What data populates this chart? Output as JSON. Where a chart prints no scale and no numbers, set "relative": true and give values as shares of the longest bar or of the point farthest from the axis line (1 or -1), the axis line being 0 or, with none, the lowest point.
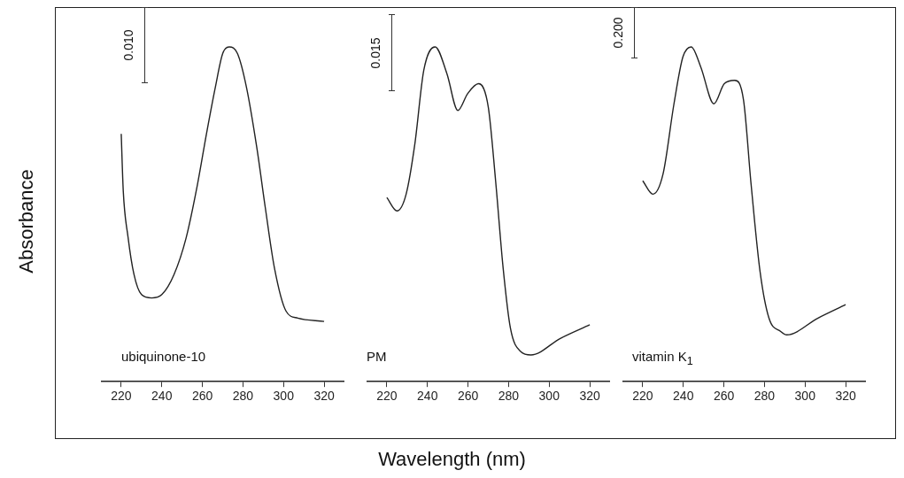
{
  "chart_data": [
    {
      "type": "line",
      "title": "ubiquinone-10",
      "ylabel": "Absorbance",
      "relative": true,
      "annotations": [
        "0.010"
      ],
      "xlim": [
        210,
        330
      ],
      "xticks": [
        220,
        240,
        260,
        280,
        300,
        320
      ],
      "grid": false,
      "legend": false,
      "marker": "none",
      "line_style": "solid",
      "series": [
        {
          "color": "#222222",
          "x": [
            220,
            221,
            223.4,
            226.3,
            230,
            235,
            240,
            246,
            252,
            257.6,
            262,
            266.4,
            270,
            273.2,
            277.3,
            281.7,
            286.8,
            291,
            295.5,
            301.3,
            307,
            320
          ],
          "values": [
            0.74,
            0.57,
            0.43,
            0.32,
            0.26,
            0.25,
            0.26,
            0.32,
            0.43,
            0.59,
            0.74,
            0.88,
            0.98,
            1,
            0.98,
            0.88,
            0.7,
            0.52,
            0.34,
            0.21,
            0.19,
            0.18
          ]
        }
      ]
    },
    {
      "type": "line",
      "title": "PM",
      "xlabel": "Wavelength (nm)",
      "relative": true,
      "annotations": [
        "0.015"
      ],
      "xlim": [
        210,
        330
      ],
      "xticks": [
        220,
        240,
        260,
        280,
        300,
        320
      ],
      "grid": false,
      "legend": false,
      "marker": "none",
      "line_style": "solid",
      "series": [
        {
          "color": "#222222",
          "x": [
            220,
            225,
            229.5,
            233.8,
            238.2,
            243.8,
            249.6,
            255,
            259.8,
            265.2,
            270,
            273.6,
            277.3,
            280.9,
            286,
            291,
            305.7,
            320
          ],
          "values": [
            0.55,
            0.51,
            0.56,
            0.71,
            0.93,
            1,
            0.92,
            0.81,
            0.86,
            0.89,
            0.82,
            0.6,
            0.34,
            0.16,
            0.09,
            0.08,
            0.13,
            0.17
          ]
        }
      ]
    },
    {
      "type": "line",
      "title": "vitamin K$_{1}$",
      "relative": true,
      "annotations": [
        "0.200"
      ],
      "xlim": [
        210,
        330
      ],
      "xticks": [
        220,
        240,
        260,
        280,
        300,
        320
      ],
      "grid": false,
      "legend": false,
      "marker": "none",
      "line_style": "solid",
      "series": [
        {
          "color": "#222222",
          "x": [
            220,
            225,
            230,
            235.4,
            239.8,
            243.9,
            248.6,
            255.1,
            260.2,
            265.3,
            269.7,
            273.4,
            277.8,
            282.2,
            288,
            291,
            306.4,
            320
          ],
          "values": [
            0.6,
            0.56,
            0.62,
            0.83,
            0.97,
            1,
            0.94,
            0.83,
            0.89,
            0.9,
            0.84,
            0.59,
            0.33,
            0.19,
            0.15,
            0.14,
            0.19,
            0.23
          ]
        }
      ]
    }
  ]
}
